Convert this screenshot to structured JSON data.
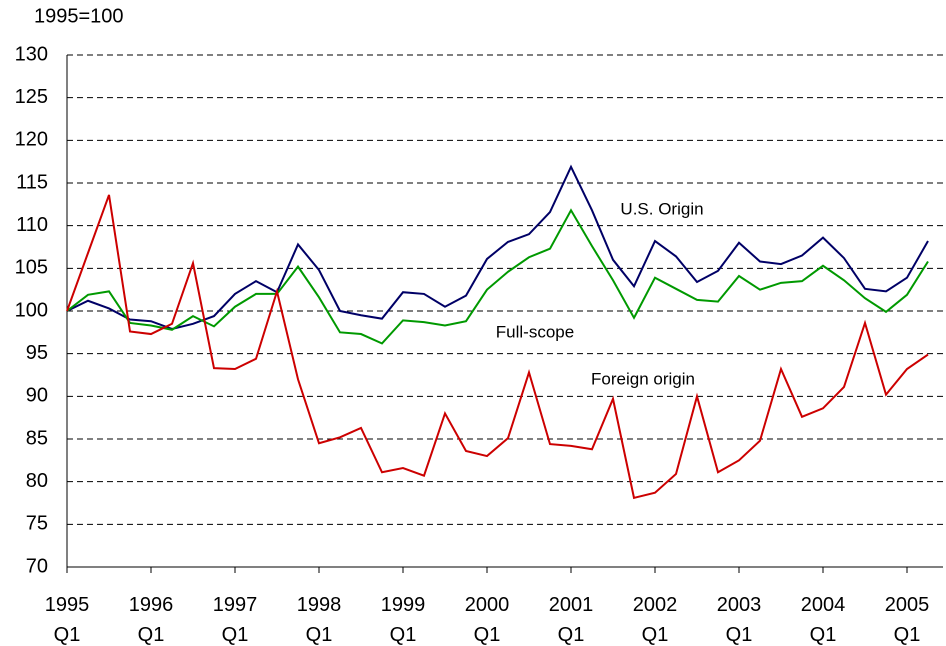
{
  "chart_data": {
    "type": "line",
    "y_axis_label": "1995=100",
    "categories": [
      "1995 Q1",
      null,
      null,
      null,
      "1996 Q1",
      null,
      null,
      null,
      "1997 Q1",
      null,
      null,
      null,
      "1998 Q1",
      null,
      null,
      null,
      "1999 Q1",
      null,
      null,
      null,
      "2000 Q1",
      null,
      null,
      null,
      "2001 Q1",
      null,
      null,
      null,
      "2002 Q1",
      null,
      null,
      null,
      "2003 Q1",
      null,
      null,
      null,
      "2004 Q1",
      null,
      null,
      null,
      "2005 Q1",
      null
    ],
    "series": [
      {
        "name": "U.S. Origin",
        "color": "#000066",
        "values": [
          100,
          101.2,
          100.3,
          99,
          98.8,
          97.9,
          98.5,
          99.4,
          102,
          103.5,
          102.2,
          107.8,
          104.8,
          100,
          99.5,
          99.1,
          102.2,
          102,
          100.5,
          101.8,
          106.1,
          108.1,
          109,
          111.6,
          116.9,
          111.8,
          106,
          102.9,
          108.2,
          106.4,
          103.4,
          104.7,
          108,
          105.8,
          105.5,
          106.5,
          108.6,
          106.2,
          102.6,
          102.3,
          103.9,
          108.2
        ]
      },
      {
        "name": "Full-scope",
        "color": "#009900",
        "values": [
          100,
          101.9,
          102.3,
          98.6,
          98.3,
          97.8,
          99.4,
          98.2,
          100.5,
          102,
          102,
          105.2,
          101.6,
          97.5,
          97.3,
          96.2,
          98.9,
          98.7,
          98.3,
          98.8,
          102.5,
          104.6,
          106.3,
          107.3,
          111.8,
          107.6,
          103.6,
          99.2,
          103.9,
          102.6,
          101.3,
          101.1,
          104.1,
          102.5,
          103.3,
          103.5,
          105.3,
          103.6,
          101.5,
          99.9,
          101.9,
          105.8
        ]
      },
      {
        "name": "Foreign origin",
        "color": "#cc0000",
        "values": [
          100,
          106.8,
          113.6,
          97.6,
          97.3,
          98.5,
          105.6,
          93.3,
          93.2,
          94.4,
          102.3,
          92,
          84.5,
          85.2,
          86.3,
          81.1,
          81.6,
          80.7,
          88,
          83.6,
          83,
          85.1,
          92.8,
          84.4,
          84.2,
          83.8,
          89.7,
          78.1,
          78.7,
          80.9,
          90,
          81.1,
          82.5,
          84.8,
          93.2,
          87.6,
          88.6,
          91.1,
          98.6,
          90.2,
          93.2,
          94.9
        ]
      }
    ],
    "ylim": [
      70,
      130
    ],
    "yticks": [
      70,
      75,
      80,
      85,
      90,
      95,
      100,
      105,
      110,
      115,
      120,
      125,
      130
    ],
    "grid": true
  }
}
